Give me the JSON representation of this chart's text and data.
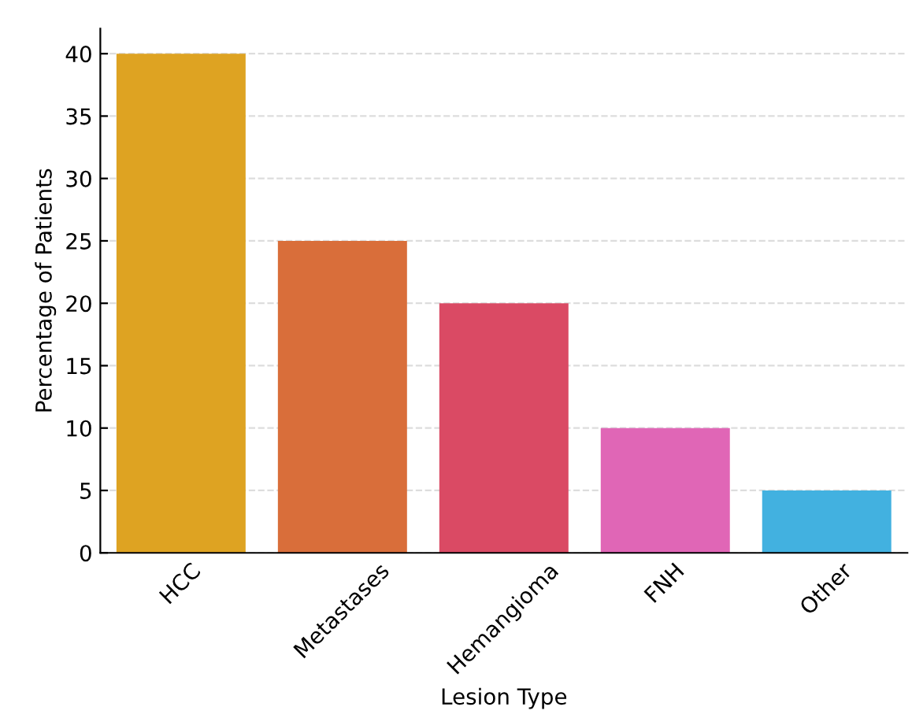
{
  "chart_data": {
    "type": "bar",
    "xlabel": "Lesion Type",
    "ylabel": "Percentage of Patients",
    "categories": [
      "HCC",
      "Metastases",
      "Hemangioma",
      "FNH",
      "Other"
    ],
    "values": [
      40,
      25,
      20,
      10,
      5
    ],
    "colors": [
      "#dea322",
      "#d96e3a",
      "#da4a64",
      "#e066b6",
      "#42b1e0"
    ],
    "ylim": [
      0,
      42
    ],
    "yticks": [
      0,
      5,
      10,
      15,
      20,
      25,
      30,
      35,
      40
    ],
    "grid": "y"
  }
}
